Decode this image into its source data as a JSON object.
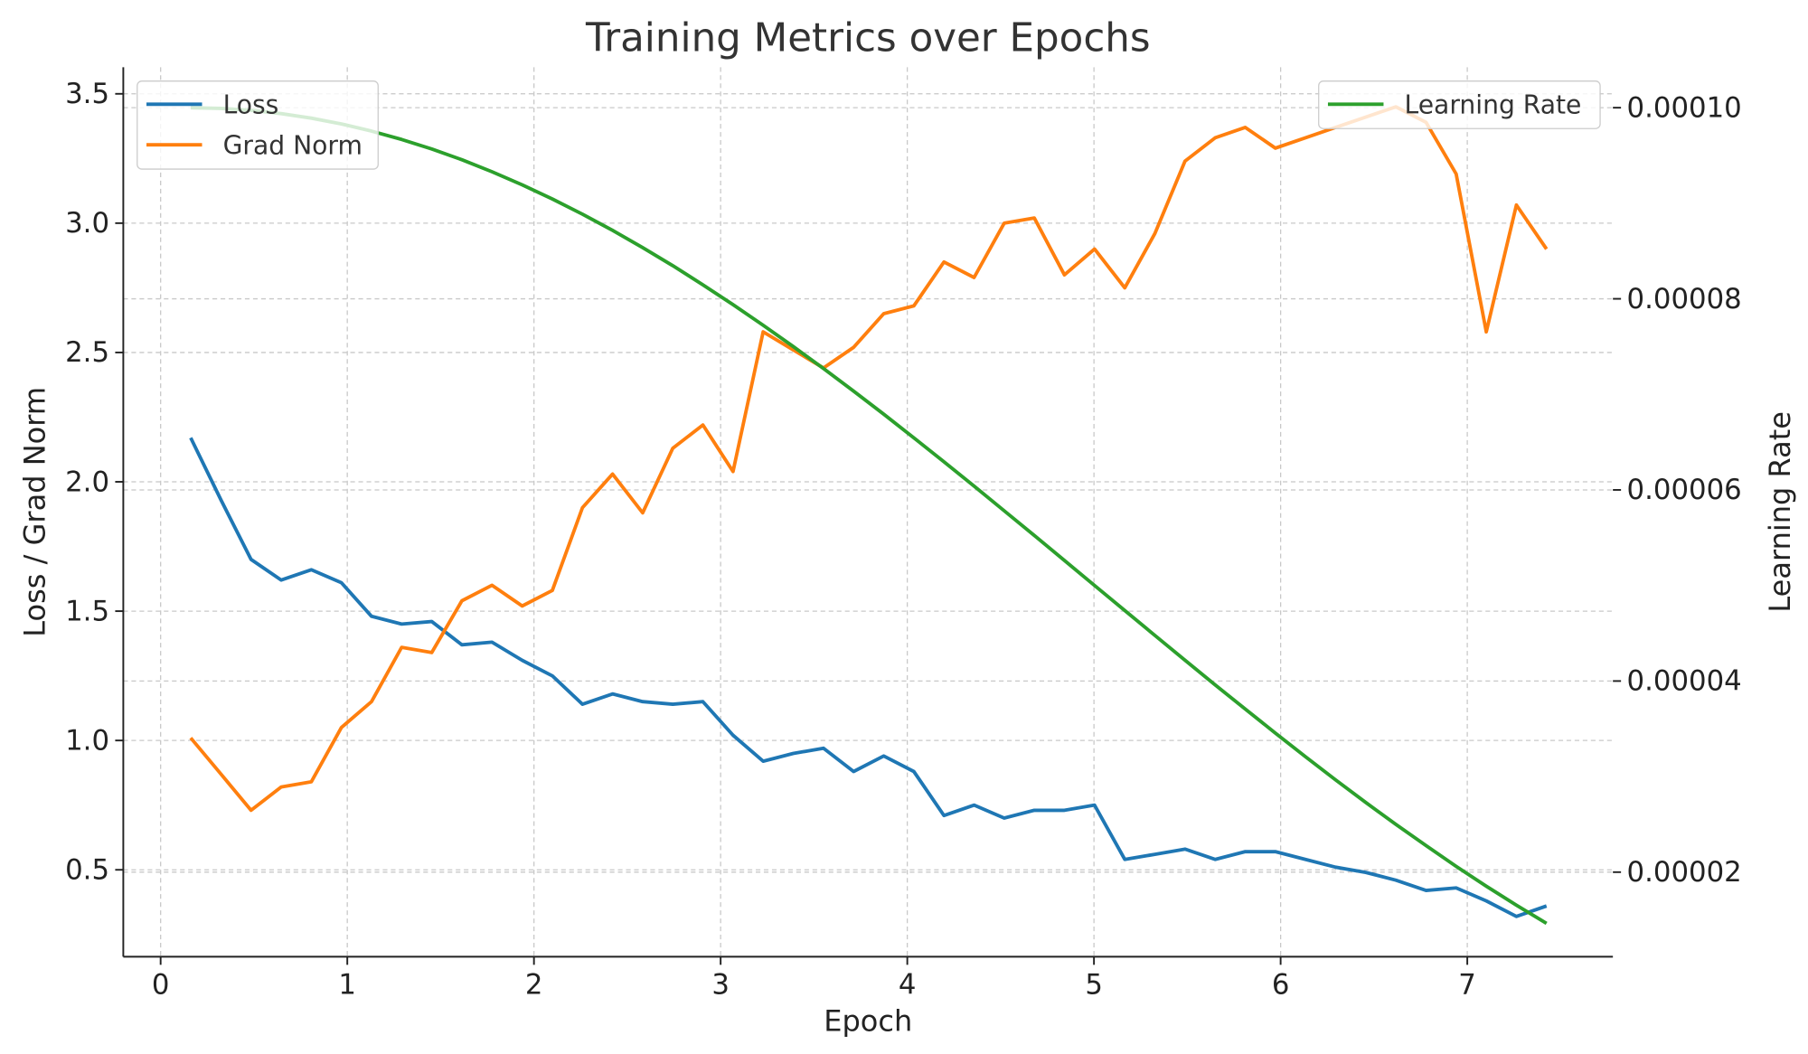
{
  "chart_data": {
    "type": "line",
    "title": "Training Metrics over Epochs",
    "xlabel": "Epoch",
    "ylabel": "Loss / Grad Norm",
    "y2label": "Learning Rate",
    "xlim": [
      -0.2,
      7.78
    ],
    "ylim": [
      0.164,
      3.603
    ],
    "y2lim": [
      1.115e-05,
      0.00010424
    ],
    "grid": true,
    "xticks": [
      0,
      1,
      2,
      3,
      4,
      5,
      6,
      7
    ],
    "xtick_labels": [
      "0",
      "1",
      "2",
      "3",
      "4",
      "5",
      "6",
      "7"
    ],
    "yticks": [
      0.5,
      1.0,
      1.5,
      2.0,
      2.5,
      3.0,
      3.5
    ],
    "ytick_labels": [
      "0.5",
      "1.0",
      "1.5",
      "2.0",
      "2.5",
      "3.0",
      "3.5"
    ],
    "y2ticks": [
      2e-05,
      4e-05,
      6e-05,
      8e-05,
      0.0001
    ],
    "y2tick_labels": [
      "0.00002",
      "0.00004",
      "0.00006",
      "0.00008",
      "0.00010"
    ],
    "legend_left": {
      "placement": "top-left",
      "entries": [
        "Loss",
        "Grad Norm"
      ]
    },
    "legend_right": {
      "placement": "top-right",
      "entries": [
        "Learning Rate"
      ]
    },
    "x_step": 0.1614,
    "series": [
      {
        "name": "Loss",
        "axis": "left",
        "color": "#1f77b4",
        "values": [
          2.17,
          1.93,
          1.7,
          1.62,
          1.66,
          1.61,
          1.48,
          1.45,
          1.46,
          1.37,
          1.38,
          1.31,
          1.25,
          1.14,
          1.18,
          1.15,
          1.14,
          1.15,
          1.02,
          0.92,
          0.95,
          0.97,
          0.88,
          0.94,
          0.88,
          0.71,
          0.75,
          0.7,
          0.73,
          0.73,
          0.75,
          0.54,
          0.56,
          0.58,
          0.54,
          0.57,
          0.57,
          0.54,
          0.51,
          0.49,
          0.46,
          0.42,
          0.43,
          0.38,
          0.32,
          0.36
        ]
      },
      {
        "name": "Grad Norm",
        "axis": "left",
        "color": "#ff7f0e",
        "values": [
          1.01,
          0.87,
          0.73,
          0.82,
          0.84,
          1.05,
          1.15,
          1.36,
          1.34,
          1.54,
          1.6,
          1.52,
          1.58,
          1.9,
          2.03,
          1.88,
          2.13,
          2.22,
          2.04,
          2.58,
          2.51,
          2.44,
          2.52,
          2.65,
          2.68,
          2.85,
          2.79,
          3.0,
          3.02,
          2.8,
          2.9,
          2.75,
          2.96,
          3.24,
          3.33,
          3.37,
          3.29,
          3.33,
          3.37,
          3.41,
          3.45,
          3.39,
          3.19,
          2.58,
          3.07,
          2.9
        ]
      },
      {
        "name": "Learning Rate",
        "axis": "right",
        "color": "#2ca02c",
        "values": [
          0.0001,
          9.993e-05,
          9.973e-05,
          9.938e-05,
          9.891e-05,
          9.83e-05,
          9.755e-05,
          9.668e-05,
          9.568e-05,
          9.455e-05,
          9.33e-05,
          9.193e-05,
          9.045e-05,
          8.886e-05,
          8.716e-05,
          8.536e-05,
          8.346e-05,
          8.147e-05,
          7.939e-05,
          7.723e-05,
          7.5e-05,
          7.27e-05,
          7.034e-05,
          6.792e-05,
          6.545e-05,
          6.294e-05,
          6.04e-05,
          5.782e-05,
          5.523e-05,
          5.262e-05,
          5e-05,
          4.738e-05,
          4.477e-05,
          4.218e-05,
          3.96e-05,
          3.706e-05,
          3.455e-05,
          3.208e-05,
          2.966e-05,
          2.73e-05,
          2.5e-05,
          2.277e-05,
          2.061e-05,
          1.853e-05,
          1.654e-05,
          1.464e-05
        ]
      }
    ]
  }
}
